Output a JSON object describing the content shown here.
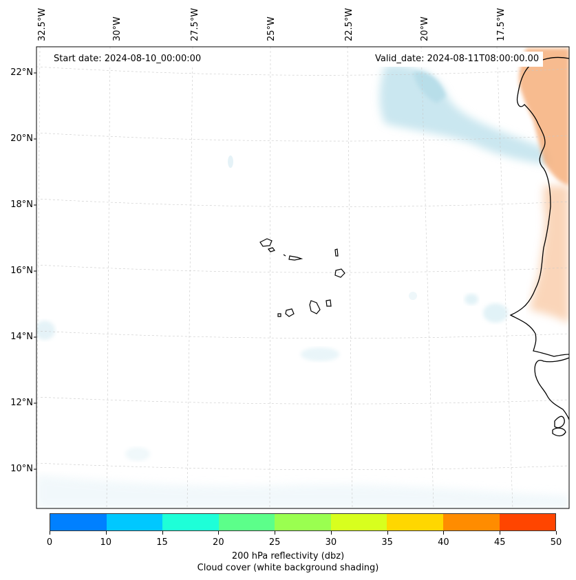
{
  "map": {
    "lon_labels": [
      "32.5°W",
      "30°W",
      "27.5°W",
      "25°W",
      "22.5°W",
      "20°W",
      "17.5°W"
    ],
    "lat_labels": [
      "22°N",
      "20°N",
      "18°N",
      "16°N",
      "14°N",
      "12°N",
      "10°N"
    ],
    "start_date": "Start date: 2024-08-10_00:00:00",
    "valid_date": "Valid_date: 2024-08-11T08:00:00.00",
    "gridlines": true
  },
  "colorbar": {
    "ticks": [
      "0",
      "10",
      "15",
      "20",
      "25",
      "30",
      "35",
      "40",
      "45",
      "50"
    ],
    "colors": [
      "#0080ff",
      "#00c8ff",
      "#1effd8",
      "#5cff8a",
      "#9aff50",
      "#d8ff1e",
      "#ffd700",
      "#ff8c00",
      "#ff4500"
    ],
    "label": "200 hPa reflectivity (dbz)",
    "sublabel": "Cloud cover (white background shading)"
  },
  "colors": {
    "cloud": "#add8e6",
    "warm_land": "#f4a46a",
    "coastline": "#000000"
  }
}
